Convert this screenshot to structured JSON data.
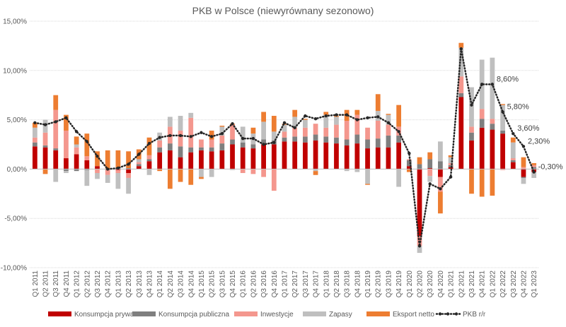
{
  "chart_data": {
    "type": "bar",
    "stacked": true,
    "title": "PKB w Polsce (niewyrównany sezonowo)",
    "xlabel": "",
    "ylabel": "",
    "ylim": [
      -10,
      15
    ],
    "yticks": [
      -10,
      -5,
      0,
      5,
      10,
      15
    ],
    "ytick_labels": [
      "-10,00%",
      "-5,00%",
      "0,00%",
      "5,00%",
      "10,00%",
      "15,00%"
    ],
    "grid": true,
    "legend_position": "bottom",
    "categories": [
      "Q1 2011",
      "Q2 2011",
      "Q3 2011",
      "Q4 2011",
      "Q1 2012",
      "Q2 2012",
      "Q3 2012",
      "Q4 2012",
      "Q1 2013",
      "Q2 2013",
      "Q3 2013",
      "Q4 2013",
      "Q1 2014",
      "Q2 2014",
      "Q3 2014",
      "Q4 2014",
      "Q1 2015",
      "Q2 2015",
      "Q3 2015",
      "Q4 2015",
      "Q1 2016",
      "Q2 2016",
      "Q3 2016",
      "Q4 2016",
      "Q1 2017",
      "Q2 2017",
      "Q3 2017",
      "Q4 2017",
      "Q1 2018",
      "Q2 2018",
      "Q3 2018",
      "Q4 2018",
      "Q1 2019",
      "Q2 2019",
      "Q3 2019",
      "Q4 2019",
      "Q1 2020",
      "Q2 2020",
      "Q3 2020",
      "Q4 2020",
      "Q1 2021",
      "Q2 2021",
      "Q3 2021",
      "Q4 2021",
      "Q1 2022",
      "Q2 2022",
      "Q3 2022",
      "Q4 2022",
      "Q1 2023"
    ],
    "series": [
      {
        "name": "Konsumpcja prywatna",
        "color": "#c00000",
        "values": [
          2.3,
          2.2,
          1.9,
          1.1,
          1.5,
          0.9,
          0.3,
          0,
          -0.1,
          -0.4,
          0.3,
          0.8,
          1.7,
          1.9,
          1.2,
          1.7,
          1.9,
          1.8,
          1.9,
          2.5,
          2.2,
          2.1,
          2.5,
          2.5,
          2.8,
          2.8,
          2.7,
          2.9,
          2.7,
          2.6,
          2.4,
          2.6,
          2.1,
          2.2,
          2.2,
          2.7,
          0.3,
          -6.8,
          0.1,
          -0.8,
          0.2,
          7.3,
          2.9,
          4.2,
          4.0,
          3.6,
          0.7,
          -0.8,
          -0.3
        ]
      },
      {
        "name": "Konsumpcja publiczna",
        "color": "#7f7f7f",
        "values": [
          0.4,
          0.2,
          0.2,
          -0.2,
          -0.2,
          -0.1,
          0,
          -0.1,
          0.1,
          0.1,
          0.2,
          0.2,
          0.5,
          0.7,
          1.1,
          0.5,
          0.3,
          0.4,
          0.7,
          0.5,
          0.5,
          0.4,
          0.5,
          0.4,
          0.4,
          0.5,
          0.6,
          0.6,
          0.6,
          0.6,
          0.6,
          0.9,
          0.9,
          0.9,
          1.2,
          0.7,
          0.6,
          0.5,
          0.9,
          0.8,
          0.2,
          0.4,
          0.8,
          0.9,
          0.6,
          0.3,
          0.2,
          -0.1,
          0.2
        ]
      },
      {
        "name": "Inwestycje",
        "color": "#f4978e",
        "values": [
          0.5,
          1.3,
          3.9,
          2.8,
          0.7,
          0.4,
          -0.4,
          -0.5,
          -0.3,
          -0.5,
          0.2,
          0.4,
          0.7,
          1.7,
          1.6,
          3.0,
          0.8,
          0.8,
          0.8,
          1.5,
          -0.4,
          -0.5,
          -0.8,
          -2.2,
          0.6,
          0.9,
          0.9,
          1.1,
          0.9,
          1.3,
          1.9,
          2.0,
          1.2,
          1.8,
          1.1,
          0.9,
          0.1,
          -1.0,
          -0.7,
          -1.5,
          0.2,
          1.7,
          0.6,
          1.0,
          0.5,
          -0.1,
          0.2,
          0.2,
          0.2
        ]
      },
      {
        "name": "Zapasy",
        "color": "#bfbfbf",
        "values": [
          1.0,
          1.3,
          -1.3,
          -0.2,
          0.3,
          -1.6,
          -0.6,
          -0.8,
          -1.6,
          -1.6,
          0.3,
          -0.6,
          0.8,
          1.0,
          1.5,
          0.5,
          -0.8,
          -0.8,
          0.9,
          -0.1,
          1.6,
          1.1,
          1.8,
          0.9,
          0.7,
          1.1,
          0.8,
          -0.2,
          1.3,
          0.8,
          -0.2,
          -0.3,
          -1.5,
          1.0,
          1.0,
          -1.8,
          0.0,
          -0.7,
          -0.6,
          2.0,
          0.6,
          2.9,
          4.0,
          5.0,
          6.2,
          2.6,
          1.6,
          -0.6,
          -0.6
        ]
      },
      {
        "name": "Eksport netto",
        "color": "#ed7d31",
        "values": [
          0.5,
          -0.5,
          1.5,
          1.6,
          0.8,
          2.3,
          1.5,
          1.9,
          1.8,
          1.7,
          1.0,
          1.8,
          -0.2,
          -2.0,
          -1.3,
          -1.6,
          -0.2,
          0.9,
          0.1,
          0.1,
          0.0,
          0.6,
          1.0,
          1.6,
          0.1,
          0.7,
          0.1,
          -0.4,
          0.3,
          0.1,
          1.1,
          0.5,
          -0.1,
          1.7,
          0.1,
          2.2,
          -0.3,
          0.7,
          0.7,
          -2.2,
          0.2,
          0.5,
          -2.5,
          -2.8,
          -2.7,
          0.1,
          0.5,
          1.0,
          0.2
        ]
      }
    ],
    "line": {
      "name": "PKB r/r",
      "color": "#262626",
      "values": [
        4.7,
        4.5,
        4.8,
        5.2,
        3.8,
        2.8,
        1.3,
        0.0,
        0.1,
        0.5,
        1.5,
        2.6,
        3.2,
        3.4,
        3.4,
        3.3,
        3.7,
        3.3,
        3.6,
        4.6,
        3.1,
        3.1,
        2.5,
        2.7,
        4.7,
        4.2,
        5.4,
        5.1,
        5.4,
        5.5,
        5.5,
        5.0,
        5.2,
        5.3,
        4.7,
        3.8,
        1.6,
        -7.8,
        -1.5,
        -2.0,
        -0.8,
        12.2,
        6.5,
        8.6,
        8.6,
        5.8,
        3.6,
        2.3,
        -0.3
      ]
    },
    "annotations": [
      {
        "index": 44,
        "text": "8,60%"
      },
      {
        "index": 45,
        "text": "5,80%"
      },
      {
        "index": 46,
        "text": "3,60%"
      },
      {
        "index": 47,
        "text": "2,30%"
      },
      {
        "index": 48,
        "text": "-0,30%"
      }
    ]
  }
}
